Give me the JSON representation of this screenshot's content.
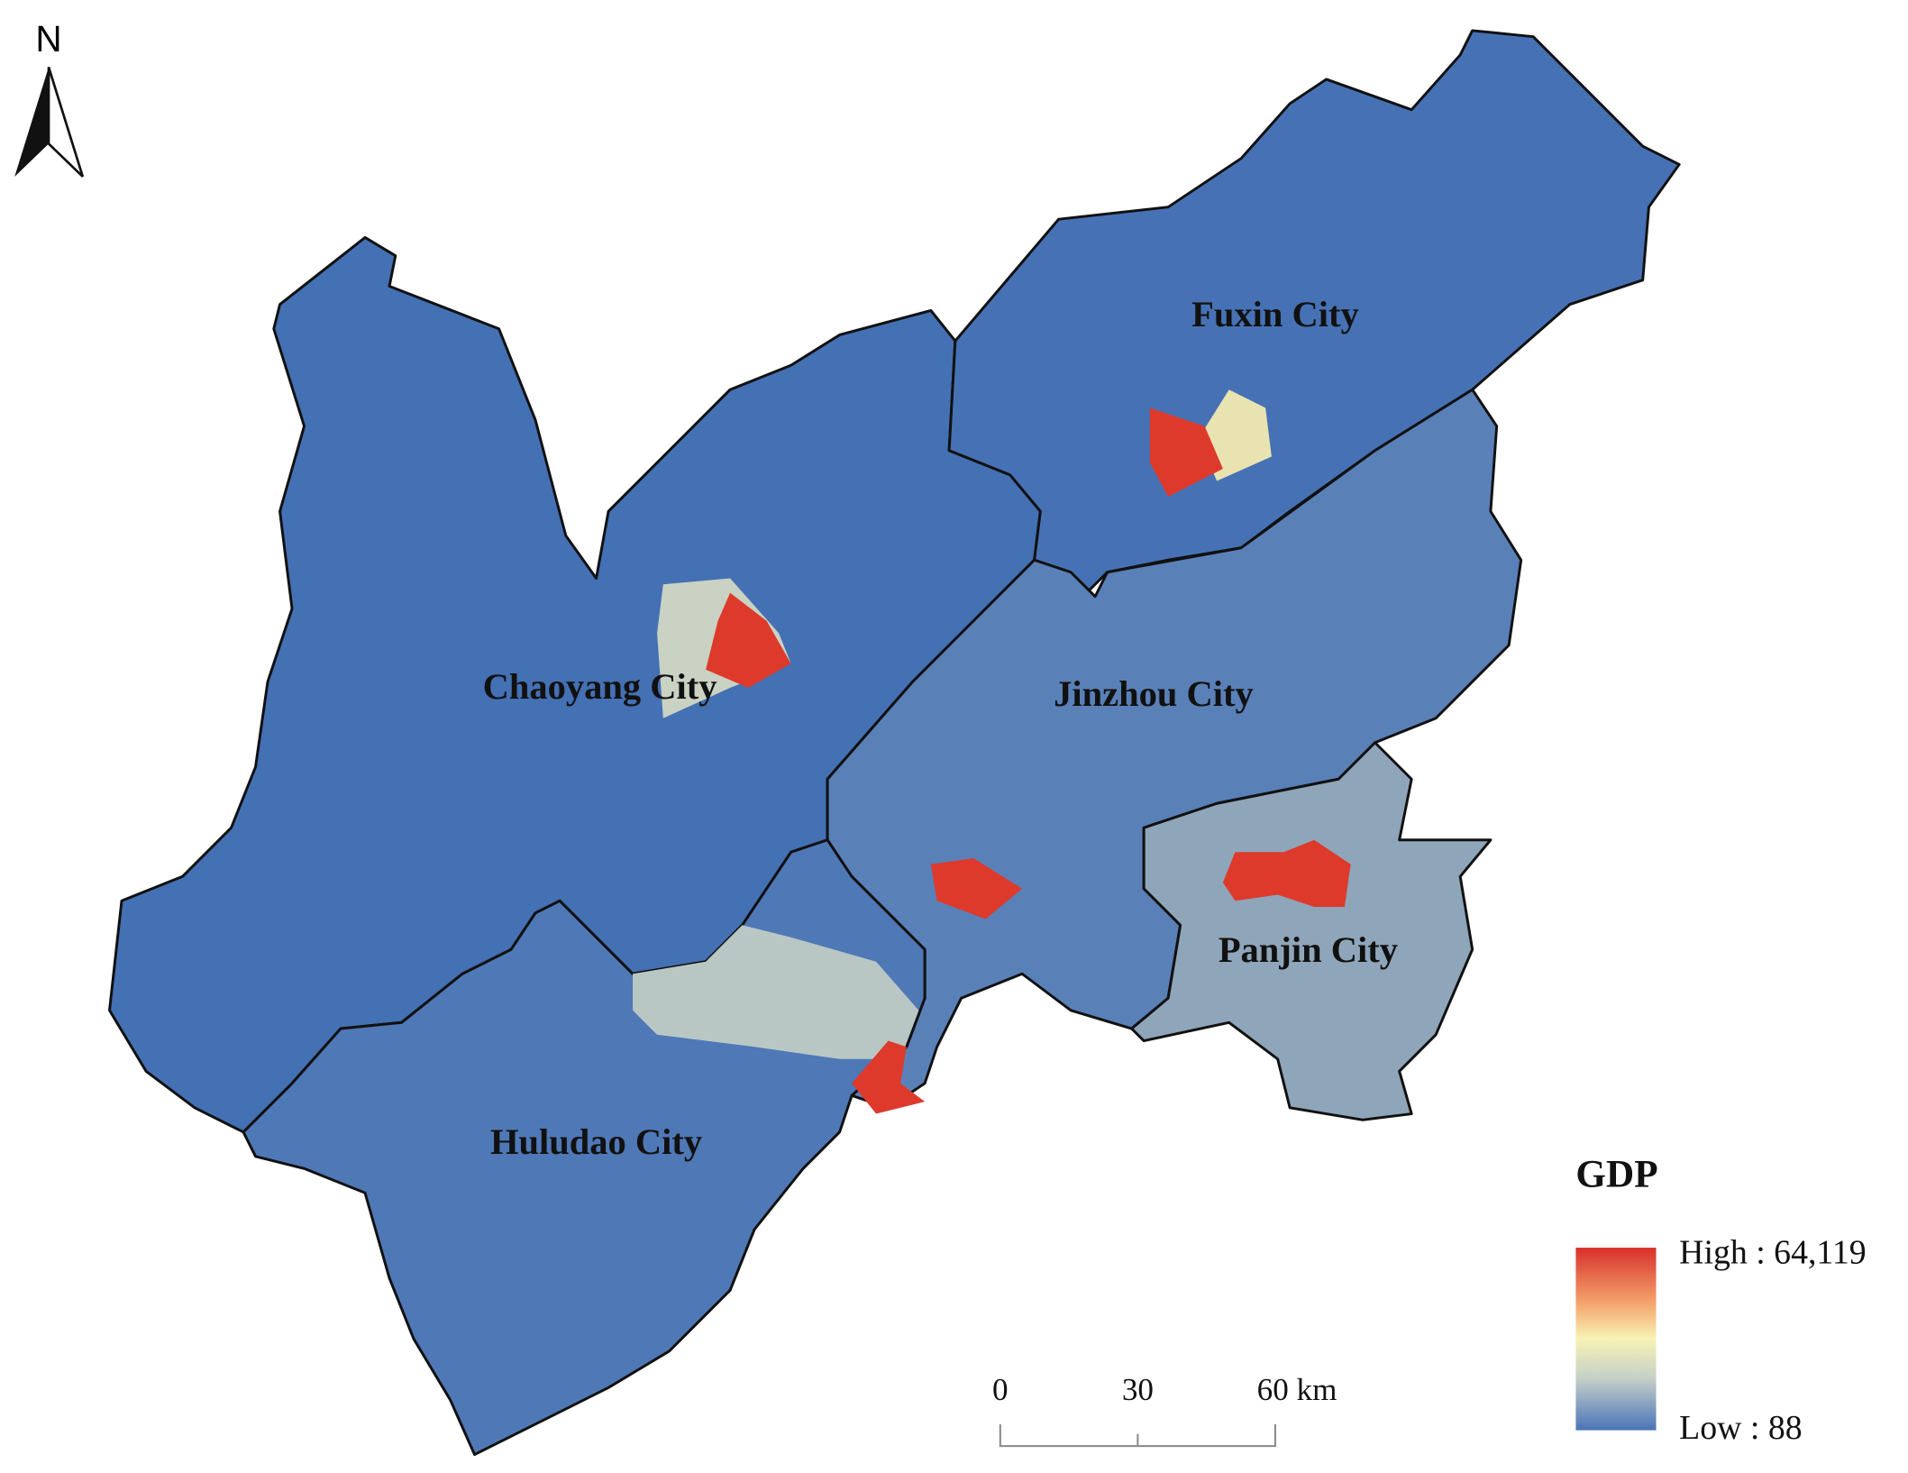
{
  "north_arrow": {
    "label": "N"
  },
  "regions": [
    {
      "label": "Fuxin City"
    },
    {
      "label": "Chaoyang City"
    },
    {
      "label": "Jinzhou City"
    },
    {
      "label": "Panjin City"
    },
    {
      "label": "Huludao City"
    }
  ],
  "legend": {
    "title": "GDP",
    "high_label": "High : 64,119",
    "low_label": "Low : 88"
  },
  "scale_bar": {
    "ticks": [
      "0",
      "30",
      "60 km"
    ]
  }
}
